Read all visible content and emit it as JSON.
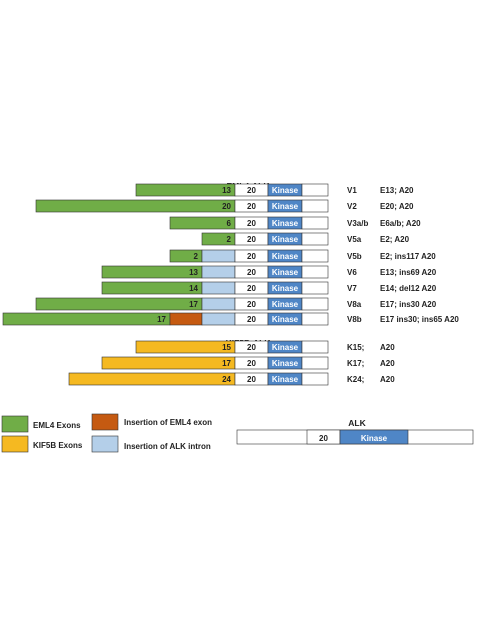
{
  "colors": {
    "eml4": "#70ad47",
    "kif5b": "#f5b921",
    "eml4_insertion": "#c55a11",
    "alk_intron": "#b4cfe9",
    "kinase": "#4f86c6",
    "box": "#ffffff",
    "stroke": "#333333"
  },
  "sections": [
    {
      "title": "EML4-ALK"
    },
    {
      "title": "KIF5B-ALK"
    }
  ],
  "rows": [
    {
      "exon": "13",
      "partner": "eml4",
      "intron": false,
      "eml4_ins": false,
      "a20": "20",
      "kinase": "Kinase",
      "variant": "V1",
      "desc": "E13; A20"
    },
    {
      "exon": "20",
      "partner": "eml4",
      "intron": false,
      "eml4_ins": false,
      "a20": "20",
      "kinase": "Kinase",
      "variant": "V2",
      "desc": "E20; A20"
    },
    {
      "exon": "6",
      "partner": "eml4",
      "intron": false,
      "eml4_ins": false,
      "a20": "20",
      "kinase": "Kinase",
      "variant": "V3a/b",
      "desc": "E6a/b; A20"
    },
    {
      "exon": "2",
      "partner": "eml4",
      "intron": false,
      "eml4_ins": false,
      "a20": "20",
      "kinase": "Kinase",
      "variant": "V5a",
      "desc": "E2; A20"
    },
    {
      "exon": "2",
      "partner": "eml4",
      "intron": true,
      "eml4_ins": false,
      "a20": "20",
      "kinase": "Kinase",
      "variant": "V5b",
      "desc": "E2; ins117 A20"
    },
    {
      "exon": "13",
      "partner": "eml4",
      "intron": true,
      "eml4_ins": false,
      "a20": "20",
      "kinase": "Kinase",
      "variant": "V6",
      "desc": "E13; ins69 A20"
    },
    {
      "exon": "14",
      "partner": "eml4",
      "intron": true,
      "eml4_ins": false,
      "a20": "20",
      "kinase": "Kinase",
      "variant": "V7",
      "desc": "E14; del12 A20"
    },
    {
      "exon": "17",
      "partner": "eml4",
      "intron": true,
      "eml4_ins": false,
      "a20": "20",
      "kinase": "Kinase",
      "variant": "V8a",
      "desc": "E17; ins30 A20"
    },
    {
      "exon": "17",
      "partner": "eml4",
      "intron": true,
      "eml4_ins": true,
      "a20": "20",
      "kinase": "Kinase",
      "variant": "V8b",
      "desc": "E17 ins30; ins65 A20"
    },
    {
      "exon": "15",
      "partner": "kif5b",
      "intron": false,
      "eml4_ins": false,
      "a20": "20",
      "kinase": "Kinase",
      "variant": "K15;",
      "desc": "A20"
    },
    {
      "exon": "17",
      "partner": "kif5b",
      "intron": false,
      "eml4_ins": false,
      "a20": "20",
      "kinase": "Kinase",
      "variant": "K17;",
      "desc": "A20"
    },
    {
      "exon": "24",
      "partner": "kif5b",
      "intron": false,
      "eml4_ins": false,
      "a20": "20",
      "kinase": "Kinase",
      "variant": "K24;",
      "desc": "A20"
    }
  ],
  "legend": {
    "eml4_exons": "EML4 Exons",
    "kif5b_exons": "KIF5B Exons",
    "eml4_insertion": "Insertion of EML4 exon",
    "alk_intron": "Insertion of ALK intron"
  },
  "alk": {
    "title": "ALK",
    "a20": "20",
    "kinase": "Kinase"
  }
}
